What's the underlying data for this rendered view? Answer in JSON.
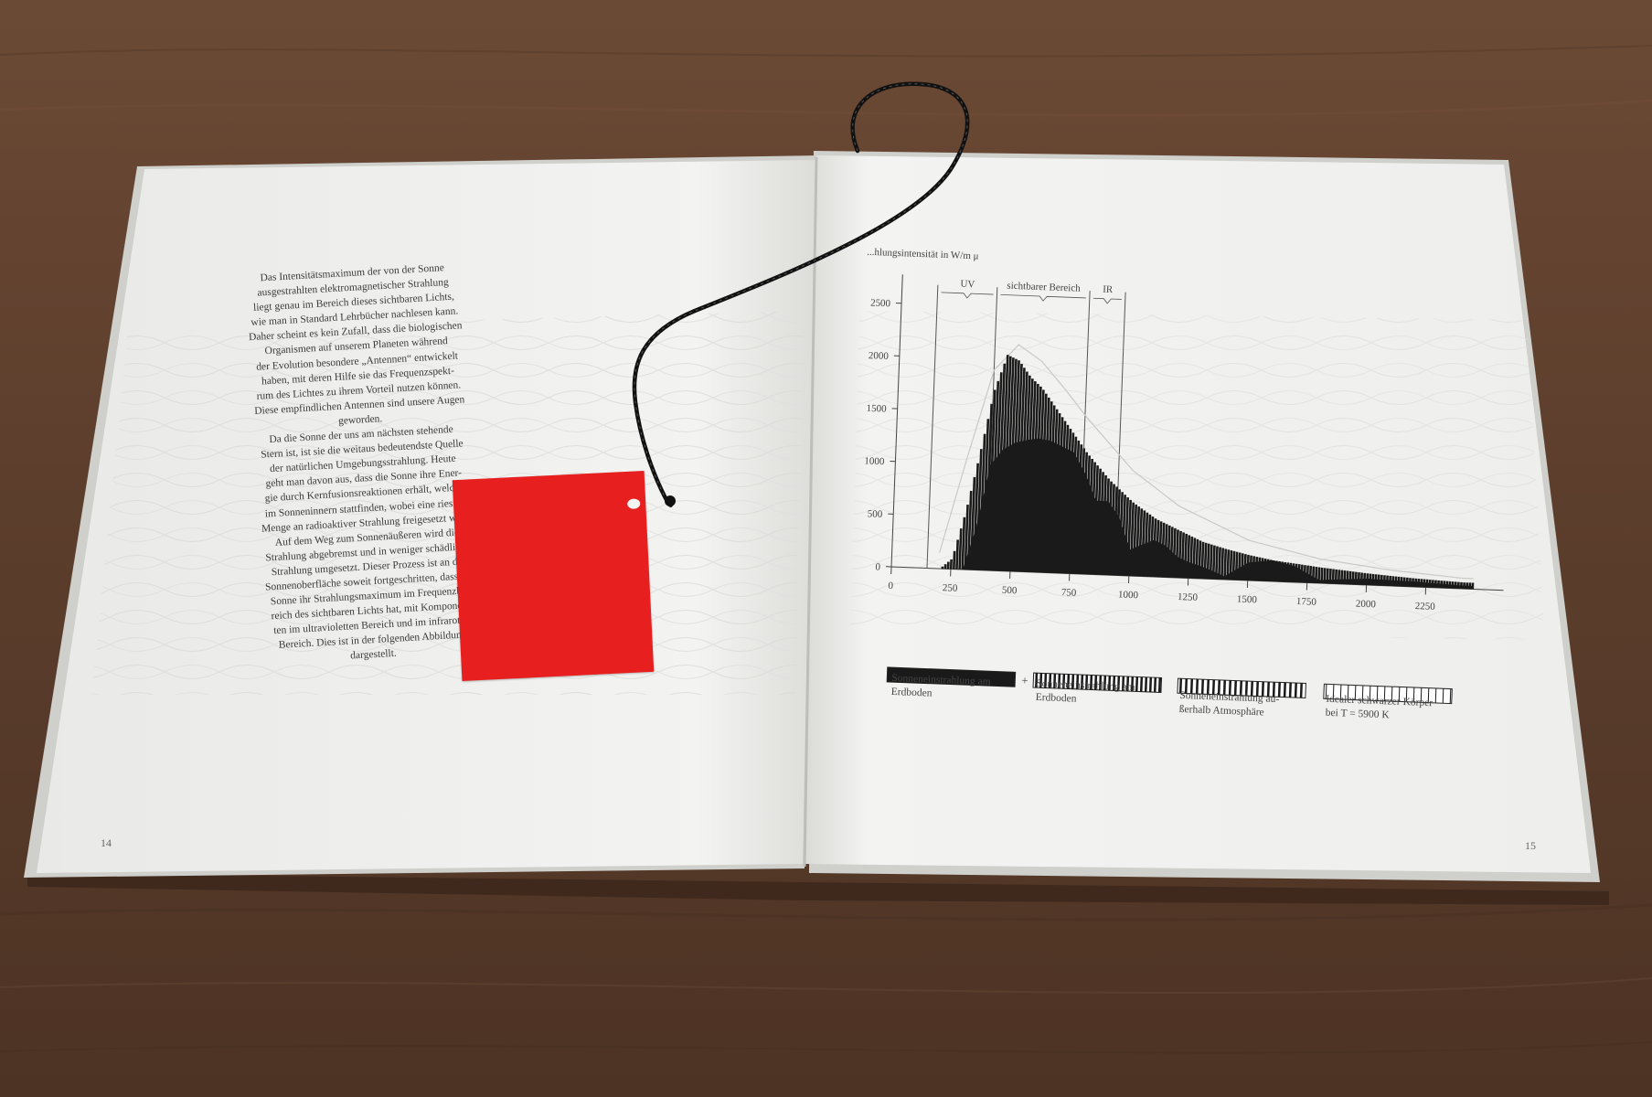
{
  "left_page": {
    "page_number": "14",
    "lines": [
      "Das Intensitätsmaximum der von der Sonne",
      "ausgestrahlten elektromagnetischer Strahlung",
      "liegt genau im Bereich dieses sichtbaren Lichts,",
      "wie man in Standard Lehrbücher nachlesen kann.",
      "Daher scheint es kein Zufall, dass die biologischen",
      "Organismen auf unserem Planeten während",
      "der Evolution besondere „Antennen“ entwickelt",
      "haben, mit deren Hilfe sie das Frequenzspekt-",
      "rum des Lichtes zu ihrem Vorteil nutzen können.",
      "Diese empfindlichen Antennen sind unsere Augen",
      "geworden.",
      "Da die Sonne der uns am nächsten stehende",
      "Stern ist, ist sie die weitaus bedeutendste Quelle",
      "der natürlichen Umgebungsstrahlung. Heute",
      "geht man davon aus, dass die Sonne ihre Ener-",
      "gie durch Kernfusionsreaktionen erhält, welche",
      "im Sonneninnern stattfinden, wobei eine riesige",
      "Menge an radioaktiver Strahlung freigesetzt wird.",
      "Auf dem Weg zum Sonnenäußeren wird die",
      "Strahlung abgebremst und in weniger schädliche",
      "Strahlung umgesetzt. Dieser Prozess ist an der",
      "Sonnenoberfläche soweit fortgeschritten, dass die",
      "Sonne ihr Strahlungsmaximum im Frequenzbe-",
      "reich des sichtbaren Lichts hat, mit Komponen-",
      "ten im ultravioletten Bereich und im infraroten",
      "Bereich. Dies ist in der folgenden Abbildung",
      "dargestellt."
    ]
  },
  "tag": {
    "color": "#e81f1f"
  },
  "right_page": {
    "page_number": "15",
    "chart_data": {
      "type": "bar",
      "ylabel": "...hlungsintensität in W/m μ",
      "region_labels": [
        "UV",
        "sichtbarer Bereich",
        "IR"
      ],
      "y_ticks": [
        0,
        500,
        1000,
        1500,
        2000,
        2500
      ],
      "x_ticks": [
        0,
        250,
        500,
        750,
        1000,
        1250,
        1500,
        1750,
        2000,
        2250
      ],
      "ylim": [
        0,
        2600
      ],
      "xlim": [
        0,
        2500
      ],
      "grid": false,
      "legend_position": "bottom",
      "series": [
        {
          "name": "Sonneneinstrahlung am Erdboden",
          "x": [
            300,
            350,
            400,
            450,
            500,
            550,
            600,
            650,
            700,
            750,
            800,
            850,
            900,
            950,
            1000,
            1050,
            1100,
            1150,
            1200,
            1250,
            1300,
            1350,
            1400,
            1500,
            1600,
            1700,
            1800,
            2000,
            2200,
            2400
          ],
          "values": [
            0,
            400,
            1000,
            1150,
            1220,
            1250,
            1270,
            1250,
            1200,
            1150,
            950,
            700,
            700,
            550,
            250,
            300,
            350,
            300,
            200,
            150,
            120,
            80,
            30,
            170,
            200,
            150,
            30,
            60,
            50,
            30
          ]
        },
        {
          "name": "Sonneneinstrahlung außerhalb Atmosphäre",
          "x": [
            200,
            250,
            300,
            350,
            400,
            450,
            500,
            550,
            600,
            650,
            700,
            750,
            800,
            900,
            1000,
            1100,
            1200,
            1300,
            1400,
            1500,
            1600,
            1800,
            2000,
            2200,
            2400
          ],
          "values": [
            0,
            100,
            550,
            1100,
            1700,
            2050,
            2000,
            1850,
            1750,
            1600,
            1450,
            1300,
            1150,
            900,
            700,
            550,
            450,
            350,
            290,
            240,
            200,
            150,
            110,
            80,
            60
          ]
        },
        {
          "name": "Idealer schwarzer Körper bei T = 5900 K",
          "x": [
            200,
            300,
            400,
            500,
            600,
            700,
            800,
            1000,
            1200,
            1500,
            1800,
            2100,
            2400
          ],
          "values": [
            150,
            1050,
            1900,
            2150,
            2000,
            1750,
            1480,
            1000,
            680,
            380,
            230,
            150,
            100
          ]
        }
      ]
    },
    "legend": {
      "plus": "+",
      "items": [
        {
          "lines": [
            "Sonneneinstrahlung am",
            "Erdboden"
          ]
        },
        {
          "lines": [
            "Sonneneinstrahlung am",
            "Erdboden"
          ]
        },
        {
          "lines": [
            "Sonneneinstrahlung au-",
            "ßerhalb Atmosphäre"
          ]
        },
        {
          "lines": [
            "Idealer schwarzer Körper",
            "bei T = 5900 K"
          ]
        }
      ]
    }
  }
}
